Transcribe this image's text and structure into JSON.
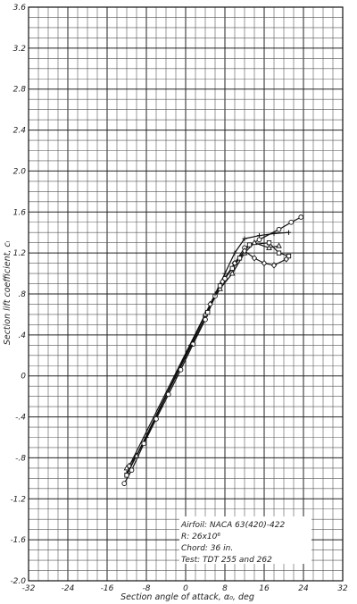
{
  "chart_data": {
    "type": "line",
    "title": "",
    "xlabel": "Section angle of attack, α₀, deg",
    "ylabel": "Section lift coefficient, cₗ",
    "xlim": [
      -32,
      32
    ],
    "ylim": [
      -2.0,
      3.6
    ],
    "grid": true,
    "x_ticks": [
      -32,
      -24,
      -16,
      -8,
      0,
      8,
      16,
      24,
      32
    ],
    "x_tick_labels": [
      "-32",
      "-24",
      "-16",
      "-8",
      "0",
      "8",
      "16",
      "24",
      "32"
    ],
    "y_ticks": [
      -2.0,
      -1.6,
      -1.2,
      -0.8,
      -0.4,
      0,
      0.4,
      0.8,
      1.2,
      1.6,
      2.0,
      2.4,
      2.8,
      3.2,
      3.6
    ],
    "y_tick_labels": [
      "-2.0",
      "-1.6",
      "-1.2",
      "-.8",
      "-.4",
      "0",
      ".4",
      ".8",
      "1.2",
      "1.6",
      "2.0",
      "2.4",
      "2.8",
      "3.2",
      "3.6"
    ],
    "annotation": [
      "Airfoil: NACA 63(420)-422",
      "R: 26x10⁶",
      "Chord: 36 in.",
      "Test: TDT 255 and 262"
    ],
    "series": [
      {
        "marker": "circle",
        "x": [
          -12.5,
          -11,
          -8.5,
          -6,
          -3.5,
          -1,
          1.5,
          4,
          6,
          8,
          10,
          12,
          15,
          19,
          21.5,
          23.5
        ],
        "y": [
          -1.05,
          -0.92,
          -0.66,
          -0.42,
          -0.18,
          0.06,
          0.31,
          0.55,
          0.78,
          0.95,
          1.1,
          1.25,
          1.33,
          1.43,
          1.5,
          1.55
        ]
      },
      {
        "marker": "plus",
        "x": [
          -12,
          -10,
          -8,
          -5,
          -2,
          1,
          4,
          6,
          8,
          10,
          12,
          15,
          18,
          21
        ],
        "y": [
          -0.95,
          -0.78,
          -0.6,
          -0.3,
          0.0,
          0.3,
          0.6,
          0.8,
          1.0,
          1.2,
          1.34,
          1.37,
          1.39,
          1.4
        ]
      },
      {
        "marker": "triangle",
        "x": [
          -12,
          -10,
          4,
          7,
          9.5,
          12,
          14,
          17,
          19
        ],
        "y": [
          -0.9,
          -0.78,
          0.6,
          0.85,
          1.0,
          1.2,
          1.3,
          1.25,
          1.27
        ]
      },
      {
        "marker": "square",
        "x": [
          -12,
          4.5,
          7,
          9.5,
          11,
          13,
          17,
          19,
          21
        ],
        "y": [
          -0.97,
          0.62,
          0.88,
          1.05,
          1.15,
          1.28,
          1.3,
          1.2,
          1.17
        ]
      },
      {
        "marker": "diamond",
        "x": [
          -11.5,
          5,
          7.5,
          10,
          12,
          14,
          16,
          18,
          20.5
        ],
        "y": [
          -0.88,
          0.7,
          0.92,
          1.1,
          1.22,
          1.15,
          1.1,
          1.08,
          1.14
        ]
      }
    ]
  }
}
